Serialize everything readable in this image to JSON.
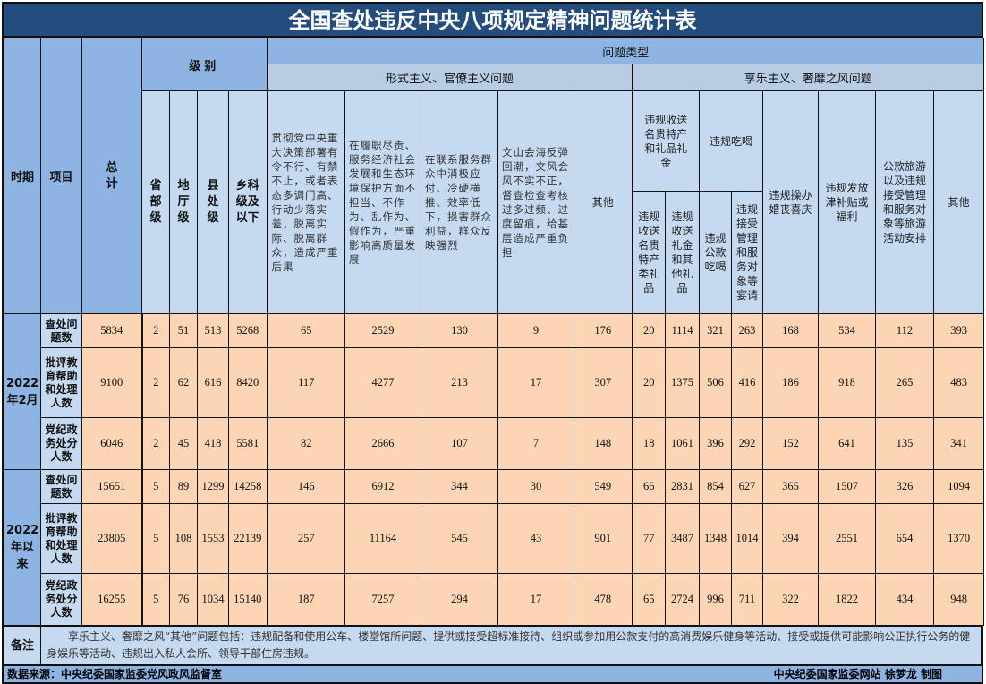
{
  "title": "全国查处违反中央八项规定精神问题统计表",
  "headers": {
    "period": "时期",
    "item": "项目",
    "total": "总计",
    "level": "级别",
    "levels": [
      "省部级",
      "地厅级",
      "县处级",
      "乡科级及以下"
    ],
    "problem_type": "问题类型",
    "formalism": "形式主义、官僚主义问题",
    "hedonism": "享乐主义、奢靡之风问题",
    "formalism_cols": [
      "贯彻党中央重大决策部署有令不行、有禁不止，或者表态多调门高、行动少落实差，脱离实际、脱离群众，造成严重后果",
      "在履职尽责、服务经济社会发展和生态环境保护方面不担当、不作为、乱作为、假作为，严重影响高质量发展",
      "在联系服务群众中消极应付、冷硬横推、效率低下，损害群众利益，群众反映强烈",
      "文山会海反弹回潮，文风会风不实不正，督查检查考核过多过频、过度留痕，给基层造成严重负担",
      "其他"
    ],
    "gifts_group": "违规收送名贵特产和礼品礼金",
    "gifts_cols": [
      "违规收送名贵特产类礼品",
      "违规收送礼金和其他礼品"
    ],
    "dining_group": "违规吃喝",
    "dining_cols": [
      "违规公款吃喝",
      "违规接受管理和服务对象等宴请"
    ],
    "hedonism_cols": [
      "违规操办婚丧喜庆",
      "违规发放津补贴或福利",
      "公款旅游以及违规接受管理和服务对象等旅游活动安排",
      "其他"
    ]
  },
  "periods": [
    {
      "label": "2022年2月",
      "rows": [
        {
          "item": "查处问题数",
          "values": [
            "5834",
            "2",
            "51",
            "513",
            "5268",
            "65",
            "2529",
            "130",
            "9",
            "176",
            "20",
            "1114",
            "321",
            "263",
            "168",
            "534",
            "112",
            "393"
          ]
        },
        {
          "item": "批评教育帮助和处理人数",
          "values": [
            "9100",
            "2",
            "62",
            "616",
            "8420",
            "117",
            "4277",
            "213",
            "17",
            "307",
            "20",
            "1375",
            "506",
            "416",
            "186",
            "918",
            "265",
            "483"
          ]
        },
        {
          "item": "党纪政务处分人数",
          "values": [
            "6046",
            "2",
            "45",
            "418",
            "5581",
            "82",
            "2666",
            "107",
            "7",
            "148",
            "18",
            "1061",
            "396",
            "292",
            "152",
            "641",
            "135",
            "341"
          ]
        }
      ]
    },
    {
      "label": "2022年以来",
      "rows": [
        {
          "item": "查处问题数",
          "values": [
            "15651",
            "5",
            "89",
            "1299",
            "14258",
            "146",
            "6912",
            "344",
            "30",
            "549",
            "66",
            "2831",
            "854",
            "627",
            "365",
            "1507",
            "326",
            "1094"
          ]
        },
        {
          "item": "批评教育帮助和处理人数",
          "values": [
            "23805",
            "5",
            "108",
            "1553",
            "22139",
            "257",
            "11164",
            "545",
            "43",
            "901",
            "77",
            "3487",
            "1348",
            "1014",
            "394",
            "2551",
            "654",
            "1370"
          ]
        },
        {
          "item": "党纪政务处分人数",
          "values": [
            "16255",
            "5",
            "76",
            "1034",
            "15140",
            "187",
            "7257",
            "294",
            "17",
            "478",
            "65",
            "2724",
            "996",
            "711",
            "322",
            "1822",
            "434",
            "948"
          ]
        }
      ]
    }
  ],
  "note": {
    "label": "备注",
    "text": "享乐主义、奢靡之风“其他”问题包括：违规配备和使用公车、楼堂馆所问题、提供或接受超标准接待、组织或参加用公款支付的高消费娱乐健身等活动、接受或提供可能影响公正执行公务的健身娱乐等活动、违规出入私人会所、领导干部住房违规。"
  },
  "footer": {
    "source": "数据来源：中央纪委国家监委党风政风监督室",
    "credit": "中央纪委国家监委网站 徐梦龙 制图"
  },
  "colors": {
    "title_bg": "#244d7e",
    "header": "#8db4e2",
    "header_light": "#c5d9f1",
    "data_cell": "#fcd5b4"
  }
}
